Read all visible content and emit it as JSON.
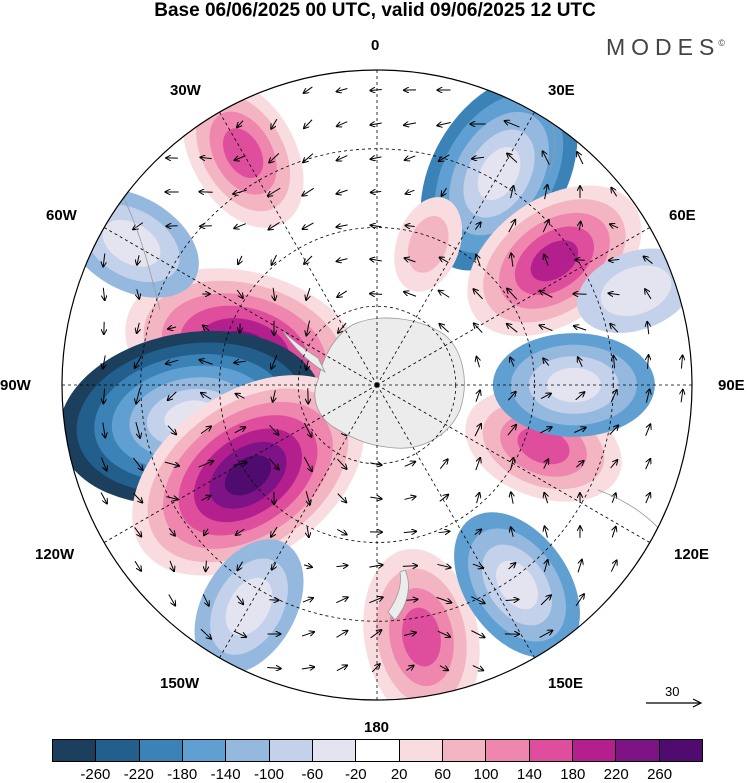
{
  "title": "Base 06/06/2025 00 UTC, valid 09/06/2025 12 UTC",
  "logo": "MODES",
  "logo_mark": "©",
  "longitude_labels": {
    "lon_0": "0",
    "lon_30e": "30E",
    "lon_60e": "60E",
    "lon_90e": "90E",
    "lon_120e": "120E",
    "lon_150e": "150E",
    "lon_180": "180",
    "lon_150w": "150W",
    "lon_120w": "120W",
    "lon_90w": "90W",
    "lon_60w": "60W",
    "lon_30w": "30W"
  },
  "reference_vector": "30",
  "colorbar": {
    "colors": [
      "#1b3f5c",
      "#235f8c",
      "#3b82b7",
      "#5f9fd1",
      "#95b9de",
      "#c4d1ea",
      "#e4e4f1",
      "#ffffff",
      "#f9dcdf",
      "#f4b5c3",
      "#ee86ad",
      "#de4e9c",
      "#b3208e",
      "#7d1384",
      "#4f0b6e"
    ],
    "tick_labels": [
      "-260",
      "-220",
      "-180",
      "-140",
      "-100",
      "-60",
      "-20",
      "20",
      "60",
      "100",
      "140",
      "180",
      "220",
      "260"
    ]
  },
  "anomaly_centers": [
    {
      "lon": 30,
      "colat_deg": 62,
      "value": -200
    },
    {
      "lon": 55,
      "colat_deg": 55,
      "value": 180
    },
    {
      "lon": -30,
      "colat_deg": 68,
      "value": 140
    },
    {
      "lon": -75,
      "colat_deg": 35,
      "value": 240
    },
    {
      "lon": -100,
      "colat_deg": 48,
      "value": -270
    },
    {
      "lon": -125,
      "colat_deg": 40,
      "value": 260
    },
    {
      "lon": -150,
      "colat_deg": 65,
      "value": -120
    },
    {
      "lon": 170,
      "colat_deg": 65,
      "value": 160
    },
    {
      "lon": 145,
      "colat_deg": 62,
      "value": -140
    },
    {
      "lon": 110,
      "colat_deg": 45,
      "value": 140
    },
    {
      "lon": 90,
      "colat_deg": 50,
      "value": -140
    },
    {
      "lon": 70,
      "colat_deg": 70,
      "value": -90
    },
    {
      "lon": -60,
      "colat_deg": 72,
      "value": -120
    },
    {
      "lon": 20,
      "colat_deg": 38,
      "value": 60
    }
  ]
}
